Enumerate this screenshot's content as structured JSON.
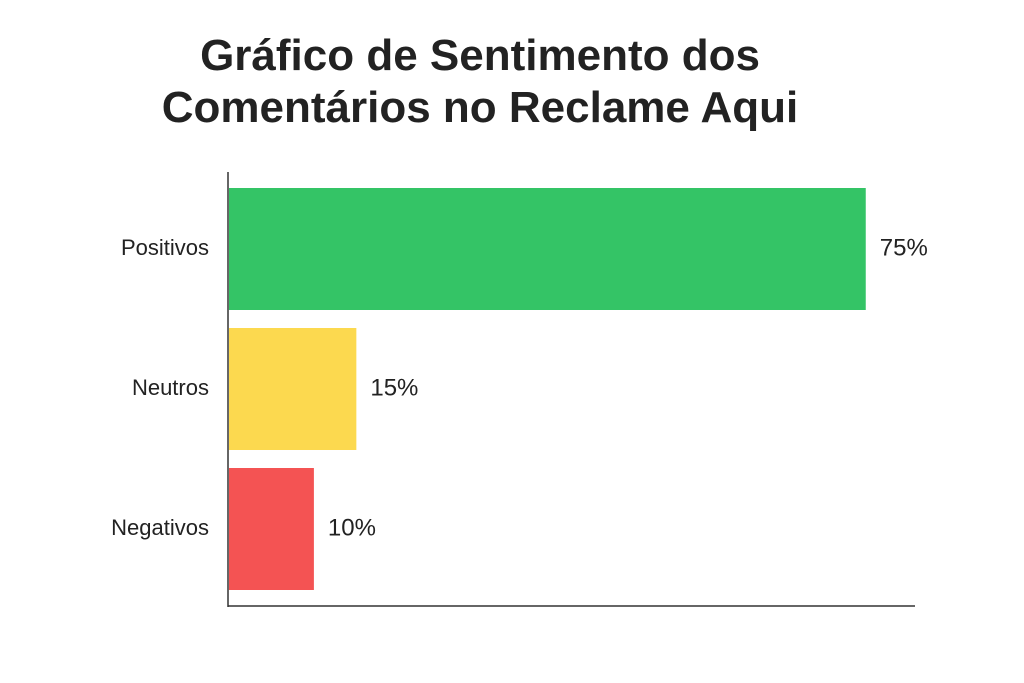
{
  "chart_data": {
    "type": "bar",
    "orientation": "horizontal",
    "title_lines": [
      "Gráfico de Sentimento dos",
      "Comentários no Reclame Aqui"
    ],
    "categories": [
      "Positivos",
      "Neutros",
      "Negativos"
    ],
    "values": [
      75,
      15,
      10
    ],
    "data_labels": [
      "75%",
      "15%",
      "10%"
    ],
    "colors": [
      "#34c466",
      "#fcd94f",
      "#f45353"
    ],
    "xlim": [
      0,
      100
    ],
    "xlabel": "",
    "ylabel": "",
    "grid": false,
    "legend": "none"
  }
}
